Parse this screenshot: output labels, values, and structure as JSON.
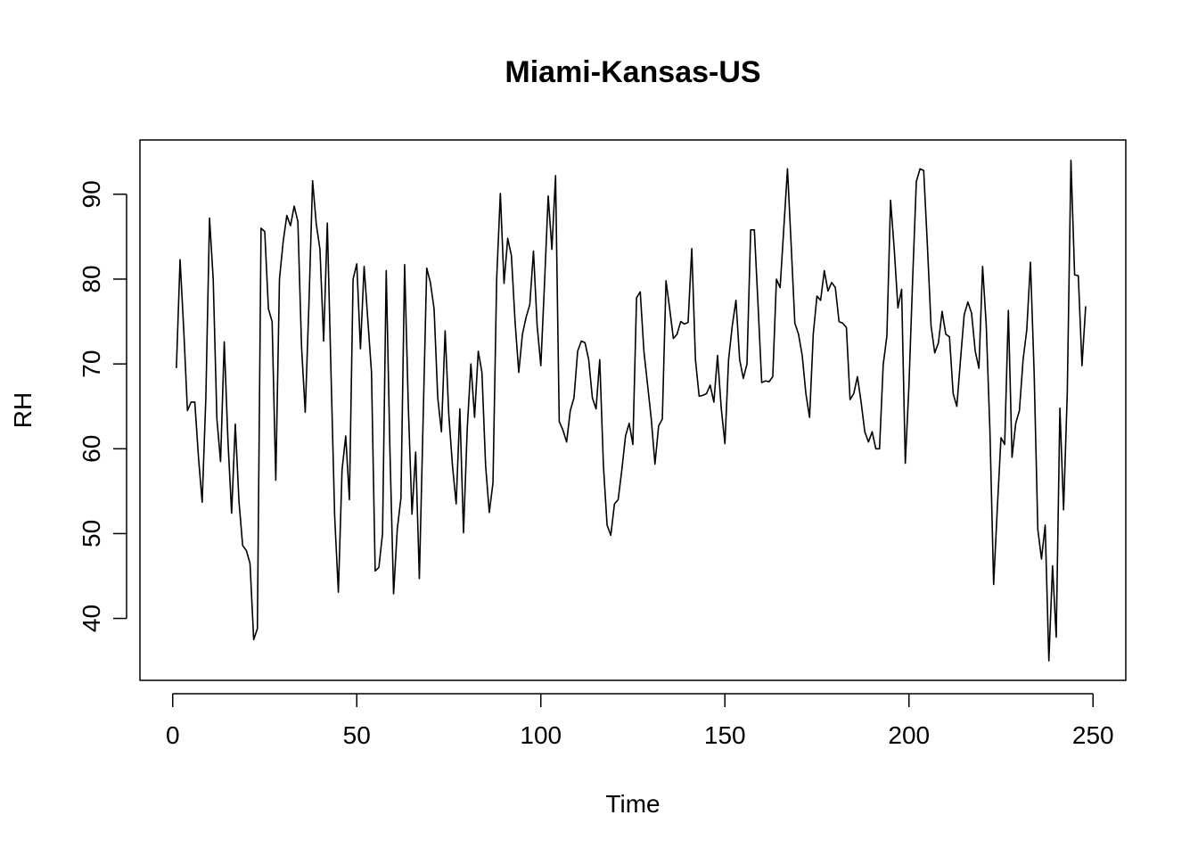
{
  "chart_data": {
    "type": "line",
    "title": "Miami-Kansas-US",
    "xlabel": "Time",
    "ylabel": "RH",
    "xlim": [
      -8.9,
      258.9
    ],
    "ylim": [
      32.7,
      96.4
    ],
    "xticks": [
      0,
      50,
      100,
      150,
      200,
      250
    ],
    "yticks": [
      40,
      50,
      60,
      70,
      80,
      90
    ],
    "xtick_labels": [
      "0",
      "50",
      "100",
      "150",
      "200",
      "250"
    ],
    "ytick_labels": [
      "40",
      "50",
      "60",
      "70",
      "80",
      "90"
    ],
    "grid": false,
    "legend": "none",
    "line_color": "#000000",
    "series": [
      {
        "x": [
          1,
          2,
          3,
          4,
          5,
          6,
          7,
          8,
          9,
          10,
          11,
          12,
          13,
          14,
          15,
          16,
          17,
          18,
          19,
          20,
          21,
          22,
          23,
          24,
          25,
          26,
          27,
          28,
          29,
          30,
          31,
          32,
          33,
          34,
          35,
          36,
          37,
          38,
          39,
          40,
          41,
          42,
          43,
          44,
          45,
          46,
          47,
          48,
          49,
          50,
          51,
          52,
          53,
          54,
          55,
          56,
          57,
          58,
          59,
          60,
          61,
          62,
          63,
          64,
          65,
          66,
          67,
          68,
          69,
          70,
          71,
          72,
          73,
          74,
          75,
          76,
          77,
          78,
          79,
          80,
          81,
          82,
          83,
          84,
          85,
          86,
          87,
          88,
          89,
          90,
          91,
          92,
          93,
          94,
          95,
          96,
          97,
          98,
          99,
          100,
          101,
          102,
          103,
          104,
          105,
          106,
          107,
          108,
          109,
          110,
          111,
          112,
          113,
          114,
          115,
          116,
          117,
          118,
          119,
          120,
          121,
          122,
          123,
          124,
          125,
          126,
          127,
          128,
          129,
          130,
          131,
          132,
          133,
          134,
          135,
          136,
          137,
          138,
          139,
          140,
          141,
          142,
          143,
          144,
          145,
          146,
          147,
          148,
          149,
          150,
          151,
          152,
          153,
          154,
          155,
          156,
          157,
          158,
          159,
          160,
          161,
          162,
          163,
          164,
          165,
          166,
          167,
          168,
          169,
          170,
          171,
          172,
          173,
          174,
          175,
          176,
          177,
          178,
          179,
          180,
          181,
          182,
          183,
          184,
          185,
          186,
          187,
          188,
          189,
          190,
          191,
          192,
          193,
          194,
          195,
          196,
          197,
          198,
          199,
          200,
          201,
          202,
          203,
          204,
          205,
          206,
          207,
          208,
          209,
          210,
          211,
          212,
          213,
          214,
          215,
          216,
          217,
          218,
          219,
          220,
          221,
          222,
          223,
          224,
          225,
          226,
          227,
          228,
          229,
          230,
          231,
          232,
          233,
          234,
          235,
          236,
          237,
          238,
          239,
          240,
          241,
          242,
          243,
          244,
          245,
          246,
          247,
          248
        ],
        "y": [
          69.5,
          82.3,
          74.0,
          64.5,
          65.5,
          65.5,
          59.0,
          53.7,
          66.0,
          87.2,
          80.0,
          63.5,
          58.5,
          72.6,
          61.0,
          52.4,
          62.9,
          53.8,
          48.6,
          48.0,
          46.5,
          37.5,
          38.8,
          86.0,
          85.6,
          76.5,
          75.0,
          56.3,
          80.0,
          84.4,
          87.5,
          86.3,
          88.6,
          86.8,
          72.0,
          64.3,
          77.0,
          91.6,
          86.5,
          83.5,
          72.7,
          86.6,
          69.0,
          52.0,
          43.1,
          57.5,
          61.5,
          54.0,
          80.0,
          81.8,
          71.8,
          81.5,
          75.2,
          69.0,
          45.6,
          46.0,
          50.0,
          81.0,
          60.0,
          42.9,
          50.5,
          54.2,
          81.7,
          65.0,
          52.3,
          59.6,
          44.7,
          63.0,
          81.3,
          79.6,
          76.5,
          66.0,
          62.0,
          73.9,
          64.0,
          58.0,
          53.5,
          64.7,
          50.1,
          62.3,
          70.0,
          63.7,
          71.5,
          69.0,
          58.0,
          52.5,
          56.0,
          80.0,
          90.1,
          79.5,
          84.8,
          82.8,
          75.0,
          69.0,
          73.5,
          75.5,
          77.0,
          83.3,
          74.5,
          69.8,
          79.5,
          89.8,
          83.5,
          92.2,
          63.2,
          62.2,
          60.8,
          64.5,
          66.0,
          71.5,
          72.7,
          72.5,
          70.5,
          66.0,
          64.7,
          70.5,
          58.0,
          51.0,
          49.8,
          53.5,
          54.0,
          57.5,
          61.5,
          63.0,
          60.5,
          77.8,
          78.5,
          71.5,
          67.5,
          63.5,
          58.2,
          62.7,
          63.5,
          79.8,
          76.5,
          73.0,
          73.5,
          75.0,
          74.7,
          74.9,
          83.6,
          70.5,
          66.2,
          66.3,
          66.5,
          67.5,
          65.5,
          71.0,
          64.8,
          60.6,
          70.5,
          74.5,
          77.5,
          70.5,
          68.3,
          70.0,
          85.8,
          85.8,
          77.0,
          67.8,
          68.0,
          67.9,
          68.5,
          80.0,
          79.0,
          86.0,
          93.0,
          84.0,
          74.8,
          73.5,
          71.0,
          66.5,
          63.7,
          73.5,
          78.0,
          77.5,
          81.0,
          78.6,
          79.6,
          79.0,
          75.0,
          74.8,
          74.3,
          65.8,
          66.5,
          68.5,
          65.5,
          62.0,
          60.8,
          62.0,
          60.0,
          60.0,
          69.9,
          73.3,
          89.3,
          83.5,
          76.6,
          78.8,
          58.3,
          67.5,
          80.0,
          91.5,
          93.0,
          92.8,
          84.0,
          74.5,
          71.3,
          72.5,
          76.2,
          73.5,
          73.2,
          66.5,
          65.0,
          70.5,
          75.8,
          77.3,
          76.0,
          71.5,
          69.5,
          81.5,
          74.5,
          62.0,
          44.0,
          53.0,
          61.3,
          60.5,
          76.3,
          59.0,
          63.0,
          64.5,
          70.5,
          74.0,
          82.0,
          69.0,
          50.5,
          47.0,
          51.0,
          35.0,
          46.2,
          37.8,
          64.8,
          52.8,
          66.5,
          94.0,
          80.5,
          80.4,
          69.8,
          76.8
        ]
      }
    ]
  }
}
